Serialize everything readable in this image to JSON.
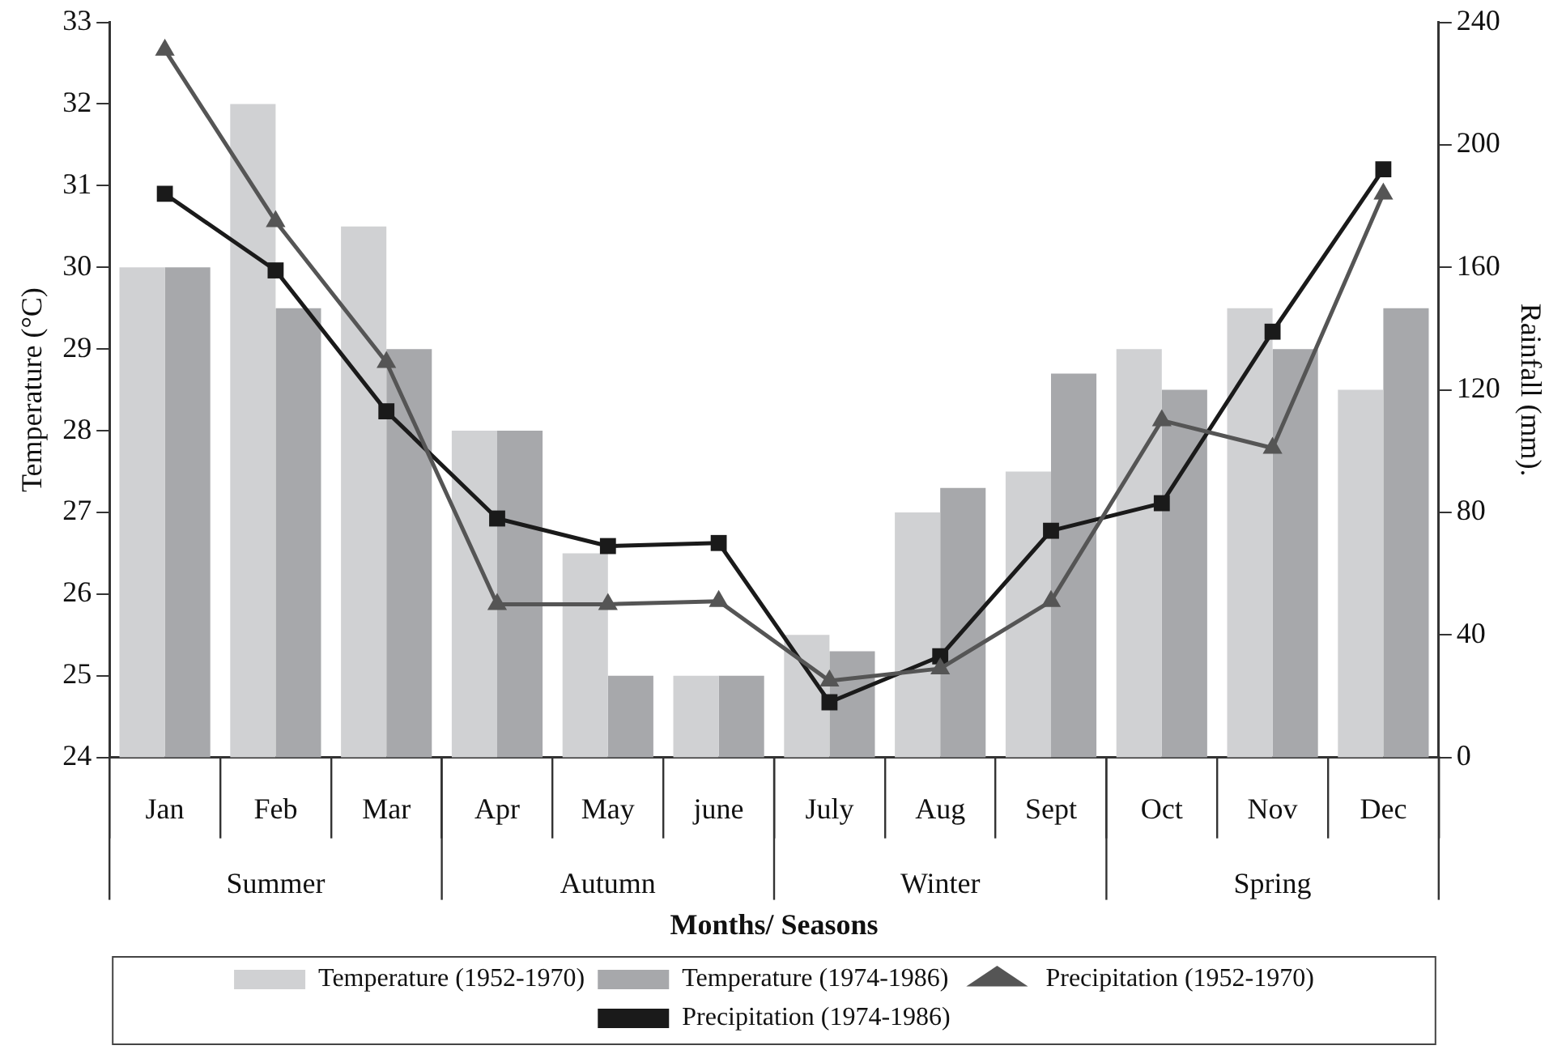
{
  "chart_data": {
    "type": "bar",
    "categories": [
      "Jan",
      "Feb",
      "Mar",
      "Apr",
      "May",
      "june",
      "July",
      "Aug",
      "Sept",
      "Oct",
      "Nov",
      "Dec"
    ],
    "xlabel": "Months/ Seasons",
    "ylabel": "Temperature (°C)",
    "y2label": "Rainfall (mm).",
    "ylim": [
      24,
      33
    ],
    "yticks": [
      24,
      25,
      26,
      27,
      28,
      29,
      30,
      31,
      32,
      33
    ],
    "y2lim": [
      0,
      240
    ],
    "y2ticks": [
      0,
      40,
      80,
      120,
      160,
      200,
      240
    ],
    "annotations": [
      "Summer",
      "Autumn",
      "Winter",
      "Spring"
    ],
    "grid": false,
    "legend": "bottom",
    "series": [
      {
        "name": "Temperature (1952-1970)",
        "color": "#d0d1d3",
        "values": [
          30,
          32,
          30.5,
          28,
          26.5,
          25,
          25.5,
          27,
          27.5,
          29,
          29.5,
          28.5
        ]
      },
      {
        "name": "Temperature (1974-1986)",
        "color": "#a7a8ab",
        "values": [
          30,
          29.5,
          29,
          28,
          25,
          25,
          25.3,
          27.3,
          28.7,
          28.5,
          29,
          29.5
        ]
      },
      {
        "name": "Precipitation (1952-1970)",
        "type": "line",
        "axis": "y2",
        "marker": "triangle",
        "color": "#555555",
        "values": [
          231,
          175,
          129,
          50,
          50,
          51,
          25,
          29,
          51,
          110,
          101,
          184
        ]
      },
      {
        "name": "Precipitation (1974-1986)",
        "type": "line",
        "axis": "y2",
        "marker": "square",
        "color": "#1a1a1a",
        "values": [
          184,
          159,
          113,
          78,
          69,
          70,
          18,
          33,
          74,
          83,
          139,
          192
        ]
      }
    ]
  }
}
